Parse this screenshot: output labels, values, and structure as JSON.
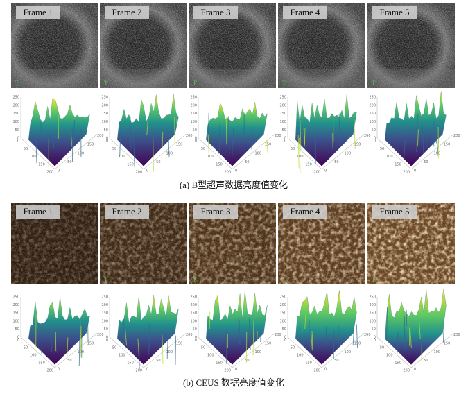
{
  "panels": [
    {
      "caption": "(a) B型超声数据亮度值变化",
      "frames": [
        "Frame 1",
        "Frame 2",
        "Frame 3",
        "Frame 4",
        "Frame 5"
      ]
    },
    {
      "caption": "(b) CEUS 数据亮度值变化",
      "frames": [
        "Frame 1",
        "Frame 2",
        "Frame 3",
        "Frame 4",
        "Frame 5"
      ]
    }
  ],
  "plot_axes": {
    "z_ticks": [
      0,
      50,
      100,
      150,
      200,
      250
    ],
    "x_ticks": [
      0,
      50,
      100,
      150,
      200
    ]
  }
}
